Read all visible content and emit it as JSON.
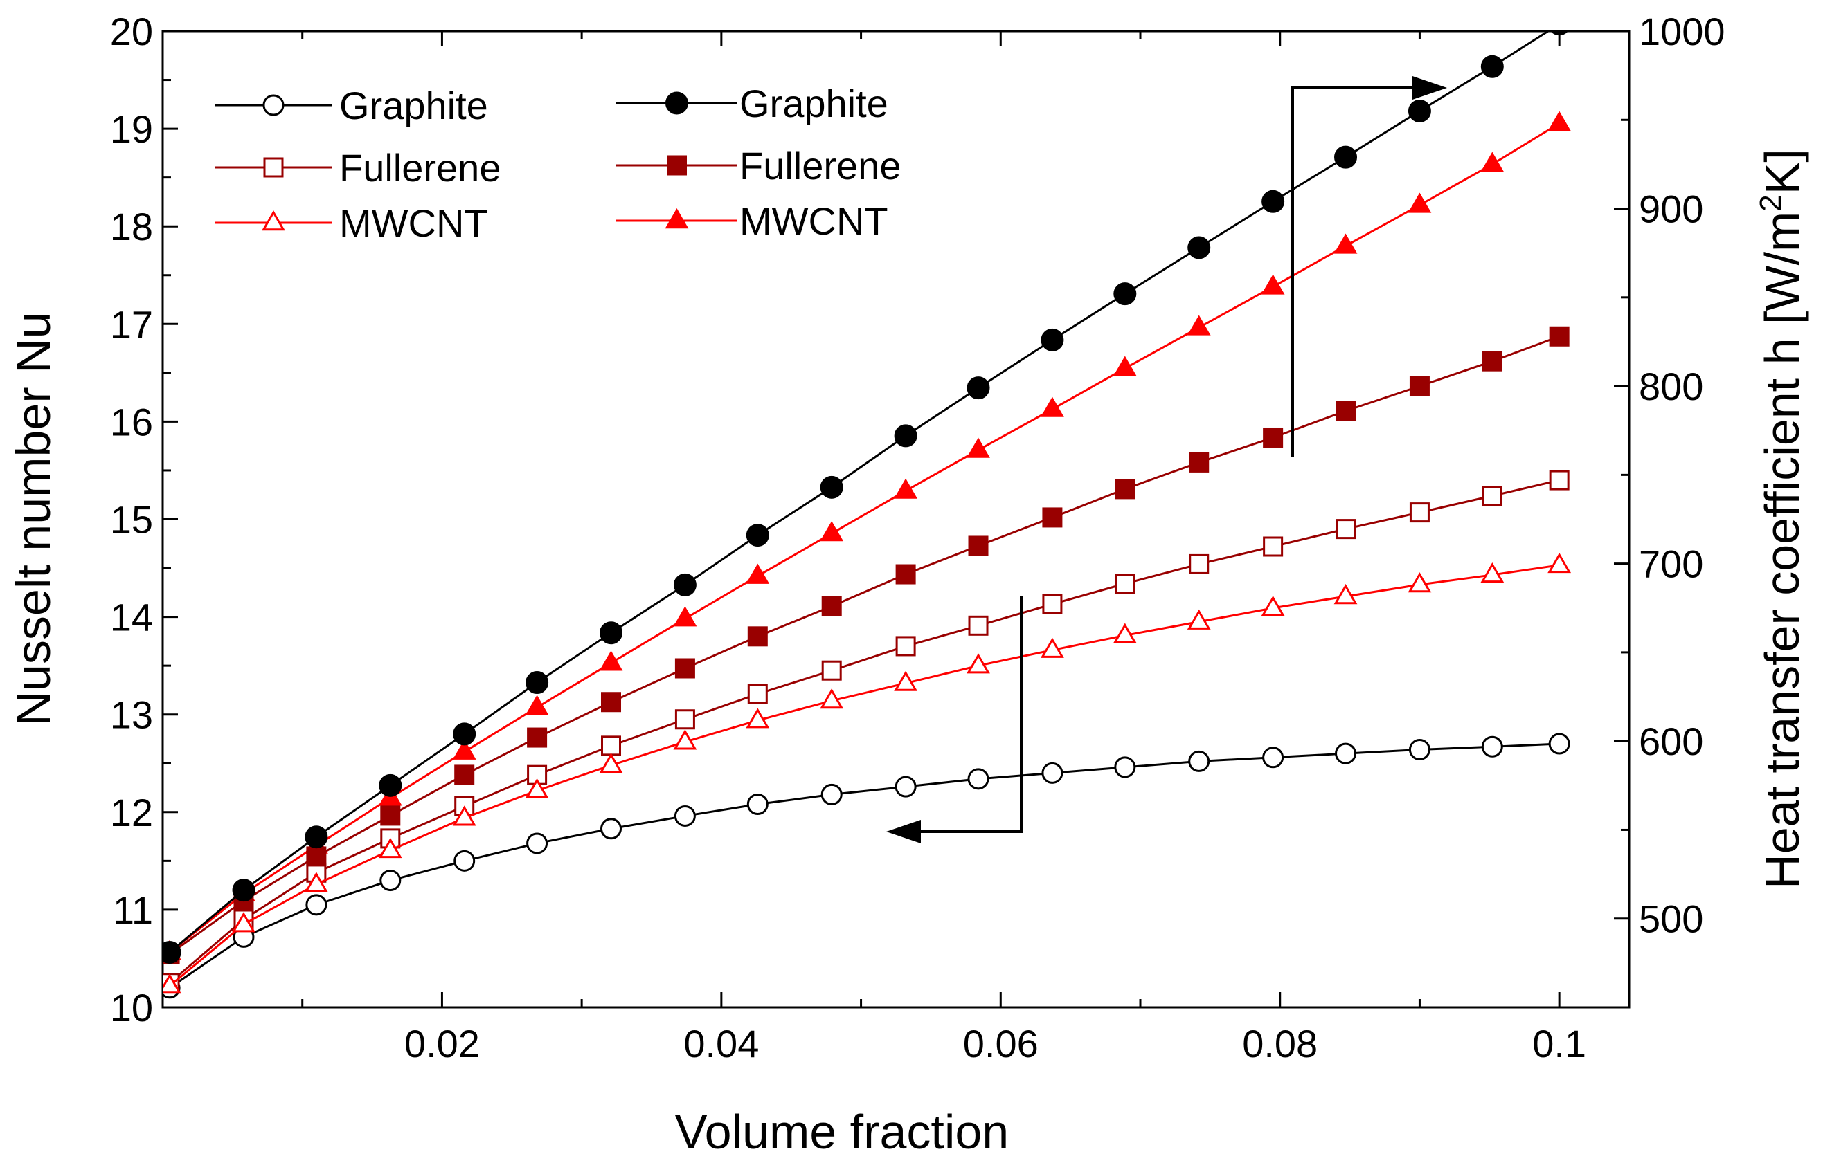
{
  "chart_data": {
    "type": "line",
    "xlabel": "Volume fraction",
    "ylabel_left": "Nusselt number Nu",
    "ylabel_right_prefix": "Heat transfer coefficient h [W/m",
    "ylabel_right_sup": "2",
    "ylabel_right_suffix": "K]",
    "xlim": [
      0.0,
      0.105
    ],
    "ylim_left": [
      10,
      20
    ],
    "ylim_right": [
      450,
      1000
    ],
    "x_ticks": [
      {
        "value": 0.02,
        "label": "0.02"
      },
      {
        "value": 0.04,
        "label": "0.04"
      },
      {
        "value": 0.06,
        "label": "0.06"
      },
      {
        "value": 0.08,
        "label": "0.08"
      },
      {
        "value": 0.1,
        "label": "0.1"
      }
    ],
    "y_left_ticks": [
      {
        "value": 10,
        "label": "10"
      },
      {
        "value": 11,
        "label": "11"
      },
      {
        "value": 12,
        "label": "12"
      },
      {
        "value": 13,
        "label": "13"
      },
      {
        "value": 14,
        "label": "14"
      },
      {
        "value": 15,
        "label": "15"
      },
      {
        "value": 16,
        "label": "16"
      },
      {
        "value": 17,
        "label": "17"
      },
      {
        "value": 18,
        "label": "18"
      },
      {
        "value": 19,
        "label": "19"
      },
      {
        "value": 20,
        "label": "20"
      }
    ],
    "y_right_ticks": [
      {
        "value": 500,
        "label": "500"
      },
      {
        "value": 600,
        "label": "600"
      },
      {
        "value": 700,
        "label": "700"
      },
      {
        "value": 800,
        "label": "800"
      },
      {
        "value": 900,
        "label": "900"
      },
      {
        "value": 1000,
        "label": "1000"
      }
    ],
    "x": [
      0.0005,
      0.0058,
      0.011,
      0.0163,
      0.0216,
      0.0268,
      0.0321,
      0.0374,
      0.0426,
      0.0479,
      0.0532,
      0.0584,
      0.0637,
      0.0689,
      0.0742,
      0.0795,
      0.0847,
      0.09,
      0.0952,
      0.1
    ],
    "series": [
      {
        "name": "Graphite",
        "axis": "left",
        "marker": "circle",
        "filled": false,
        "color": "#000000",
        "values": [
          10.2,
          10.72,
          11.05,
          11.3,
          11.5,
          11.68,
          11.83,
          11.96,
          12.08,
          12.18,
          12.26,
          12.34,
          12.4,
          12.46,
          12.52,
          12.56,
          12.6,
          12.64,
          12.67,
          12.7
        ]
      },
      {
        "name": "Fullerene",
        "axis": "left",
        "marker": "square",
        "filled": false,
        "color": "#990000",
        "values": [
          10.25,
          10.9,
          11.38,
          11.73,
          12.06,
          12.38,
          12.68,
          12.95,
          13.21,
          13.45,
          13.7,
          13.91,
          14.13,
          14.34,
          14.54,
          14.72,
          14.9,
          15.07,
          15.24,
          15.4
        ]
      },
      {
        "name": "MWCNT",
        "axis": "left",
        "marker": "triangle",
        "filled": false,
        "color": "#ff0000",
        "values": [
          10.22,
          10.85,
          11.26,
          11.61,
          11.94,
          12.22,
          12.48,
          12.72,
          12.94,
          13.14,
          13.32,
          13.5,
          13.66,
          13.81,
          13.95,
          14.09,
          14.21,
          14.33,
          14.43,
          14.53
        ]
      },
      {
        "name": "Graphite",
        "axis": "right",
        "marker": "circle",
        "filled": true,
        "color": "#000000",
        "values": [
          481,
          516,
          546,
          575,
          604,
          633,
          661,
          688,
          716,
          743,
          772,
          799,
          826,
          852,
          878,
          904,
          929,
          955,
          980,
          1004
        ]
      },
      {
        "name": "Fullerene",
        "axis": "right",
        "marker": "square",
        "filled": true,
        "color": "#990000",
        "values": [
          480,
          510,
          535,
          558,
          581,
          602,
          622,
          641,
          659,
          676,
          694,
          710,
          726,
          742,
          757,
          771,
          786,
          800,
          814,
          828
        ]
      },
      {
        "name": "MWCNT",
        "axis": "right",
        "marker": "triangle",
        "filled": true,
        "color": "#ff0000",
        "values": [
          481,
          514,
          541,
          568,
          594,
          619,
          644,
          669,
          693,
          717,
          741,
          764,
          787,
          810,
          833,
          856,
          879,
          902,
          925,
          948
        ]
      }
    ],
    "legend_left": [
      "Graphite",
      "Fullerene",
      "MWCNT"
    ],
    "legend_right": [
      "Graphite",
      "Fullerene",
      "MWCNT"
    ],
    "annotations": [
      {
        "type": "arrow",
        "direction": "right",
        "points_to": "right axis"
      },
      {
        "type": "arrow",
        "direction": "left",
        "points_to": "left axis"
      }
    ]
  }
}
